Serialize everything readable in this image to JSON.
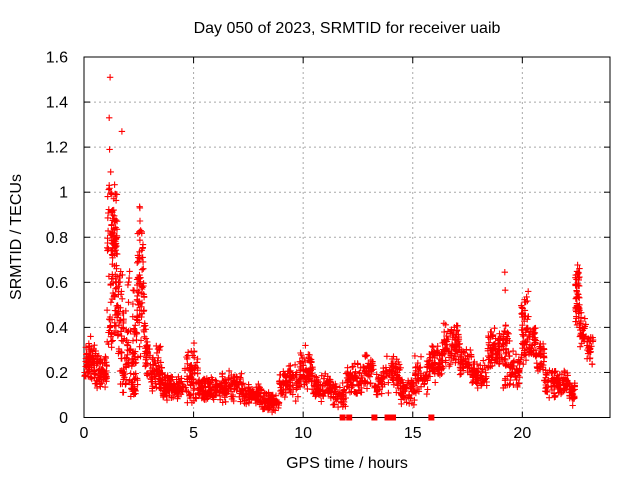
{
  "window": {
    "background": "#ffffff"
  },
  "chart_data": {
    "type": "scatter",
    "title": "Day 050 of 2023, SRMTID for receiver uaib",
    "xlabel": "GPS time / hours",
    "ylabel": "SRMTID / TECUs",
    "xlim": [
      0,
      24
    ],
    "ylim": [
      0,
      1.6
    ],
    "xticks": [
      0,
      5,
      10,
      15,
      20
    ],
    "xtick_labels": [
      "0",
      "5",
      "10",
      "15",
      "20"
    ],
    "yticks": [
      0,
      0.2,
      0.4,
      0.6,
      0.8,
      1.0,
      1.2,
      1.4,
      1.6
    ],
    "ytick_labels": [
      "0",
      "0.2",
      "0.4",
      "0.6",
      "0.8",
      "1",
      "1.2",
      "1.4",
      "1.6"
    ],
    "grid": true,
    "grid_style": "dashed",
    "colors": {
      "marker": "#ff0000",
      "grid": "#a8a8a8",
      "frame": "#000000",
      "text": "#000000"
    },
    "series": [
      {
        "name": "srmtid",
        "marker": "plus",
        "color": "#ff0000",
        "seed": 1337,
        "clusters_format": [
          "x_start_hr",
          "x_end_hr",
          "y_min_tecu",
          "y_max_tecu",
          "n_points",
          "concentrated"
        ],
        "clusters": [
          [
            0.02,
            0.55,
            0.14,
            0.36,
            75,
            1
          ],
          [
            0.55,
            1.05,
            0.12,
            0.3,
            65,
            1
          ],
          [
            1.05,
            1.3,
            0.3,
            1.05,
            45,
            0
          ],
          [
            1.25,
            1.52,
            0.55,
            1.05,
            70,
            1
          ],
          [
            1.3,
            1.58,
            0.33,
            0.6,
            30,
            0
          ],
          [
            1.55,
            1.82,
            0.28,
            0.66,
            30,
            0
          ],
          [
            1.6,
            1.95,
            0.08,
            0.3,
            25,
            0
          ],
          [
            1.82,
            2.4,
            0.18,
            0.5,
            50,
            1
          ],
          [
            2.0,
            2.32,
            0.5,
            0.66,
            8,
            0
          ],
          [
            2.05,
            2.45,
            0.08,
            0.2,
            30,
            1
          ],
          [
            2.4,
            2.75,
            0.25,
            0.95,
            80,
            1
          ],
          [
            2.75,
            3.05,
            0.15,
            0.46,
            40,
            1
          ],
          [
            3.05,
            3.6,
            0.1,
            0.28,
            70,
            1
          ],
          [
            3.2,
            3.55,
            0.28,
            0.36,
            6,
            0
          ],
          [
            3.6,
            4.6,
            0.07,
            0.2,
            110,
            1
          ],
          [
            4.6,
            5.2,
            0.04,
            0.33,
            70,
            1
          ],
          [
            5.2,
            6.2,
            0.07,
            0.19,
            100,
            1
          ],
          [
            6.2,
            7.2,
            0.06,
            0.21,
            95,
            1
          ],
          [
            7.2,
            8.1,
            0.05,
            0.16,
            85,
            1
          ],
          [
            8.1,
            8.9,
            0.02,
            0.12,
            70,
            1
          ],
          [
            8.9,
            9.8,
            0.07,
            0.24,
            85,
            1
          ],
          [
            9.8,
            10.45,
            0.1,
            0.31,
            70,
            1
          ],
          [
            10.45,
            11.35,
            0.07,
            0.2,
            85,
            1
          ],
          [
            11.35,
            11.95,
            0.04,
            0.16,
            50,
            1
          ],
          [
            11.95,
            12.8,
            0.09,
            0.26,
            75,
            1
          ],
          [
            12.8,
            13.25,
            0.12,
            0.3,
            40,
            1
          ],
          [
            13.25,
            13.65,
            0.08,
            0.2,
            30,
            1
          ],
          [
            13.65,
            14.45,
            0.1,
            0.3,
            70,
            1
          ],
          [
            14.45,
            15.1,
            0.05,
            0.18,
            55,
            1
          ],
          [
            15.1,
            15.7,
            0.1,
            0.28,
            55,
            1
          ],
          [
            15.7,
            16.4,
            0.15,
            0.34,
            75,
            1
          ],
          [
            16.4,
            17.15,
            0.22,
            0.43,
            85,
            1
          ],
          [
            17.15,
            17.7,
            0.17,
            0.32,
            55,
            1
          ],
          [
            17.7,
            18.4,
            0.12,
            0.26,
            65,
            1
          ],
          [
            18.4,
            19.1,
            0.2,
            0.42,
            75,
            1
          ],
          [
            19.1,
            19.45,
            0.12,
            0.42,
            45,
            0
          ],
          [
            19.45,
            19.95,
            0.12,
            0.3,
            45,
            1
          ],
          [
            19.95,
            20.3,
            0.2,
            0.57,
            60,
            1
          ],
          [
            20.3,
            20.65,
            0.25,
            0.42,
            40,
            1
          ],
          [
            20.65,
            21.0,
            0.18,
            0.35,
            35,
            1
          ],
          [
            21.0,
            21.6,
            0.08,
            0.24,
            50,
            1
          ],
          [
            21.6,
            22.1,
            0.1,
            0.22,
            45,
            1
          ],
          [
            22.1,
            22.4,
            0.04,
            0.18,
            30,
            1
          ],
          [
            22.42,
            22.62,
            0.38,
            0.68,
            55,
            1
          ],
          [
            22.62,
            22.95,
            0.3,
            0.47,
            30,
            1
          ],
          [
            22.95,
            23.25,
            0.22,
            0.38,
            25,
            1
          ]
        ],
        "outlier_points": [
          [
            1.19,
            1.51
          ],
          [
            1.15,
            1.33
          ],
          [
            1.73,
            1.27
          ],
          [
            1.17,
            1.19
          ],
          [
            1.22,
            1.09
          ],
          [
            2.55,
            0.93
          ],
          [
            0.3,
            0.36
          ],
          [
            5.02,
            0.33
          ],
          [
            10.1,
            0.32
          ],
          [
            19.2,
            0.645
          ],
          [
            19.22,
            0.565
          ]
        ]
      },
      {
        "name": "zero-flags",
        "marker": "filled-square",
        "color": "#ff0000",
        "y": 0,
        "x": [
          11.8,
          12.1,
          13.25,
          13.85,
          14.1,
          15.85
        ]
      }
    ],
    "legend": null
  }
}
